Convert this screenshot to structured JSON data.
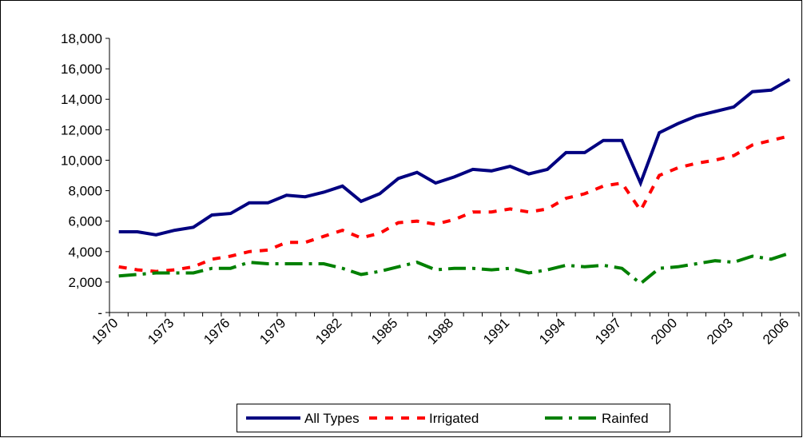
{
  "chart_data": {
    "type": "line",
    "categories": [
      "1970",
      null,
      null,
      "1973",
      null,
      null,
      "1976",
      null,
      null,
      "1979",
      null,
      null,
      "1982",
      null,
      null,
      "1985",
      null,
      null,
      "1988",
      null,
      null,
      "1991",
      null,
      null,
      "1994",
      null,
      null,
      "1997",
      null,
      null,
      "2000",
      null,
      null,
      "2003",
      null,
      null,
      "2006"
    ],
    "series": [
      {
        "name": "All Types",
        "color": "#000080",
        "dash": "solid",
        "values": [
          5300,
          5300,
          5100,
          5400,
          5600,
          6400,
          6500,
          7200,
          7200,
          7700,
          7600,
          7900,
          8300,
          7300,
          7800,
          8800,
          9200,
          8500,
          8900,
          9400,
          9300,
          9600,
          9100,
          9400,
          10500,
          10500,
          11300,
          11300,
          8500,
          11800,
          12400,
          12900,
          13200,
          13500,
          14500,
          14600,
          15300
        ]
      },
      {
        "name": "Irrigated",
        "color": "#ff0000",
        "dash": "dashed",
        "values": [
          3000,
          2800,
          2700,
          2800,
          3000,
          3500,
          3700,
          4000,
          4100,
          4600,
          4600,
          5000,
          5400,
          4900,
          5200,
          5900,
          6000,
          5800,
          6100,
          6600,
          6600,
          6800,
          6600,
          6800,
          7500,
          7800,
          8300,
          8500,
          6700,
          9000,
          9500,
          9800,
          10000,
          10300,
          11000,
          11300,
          11600
        ]
      },
      {
        "name": "Rainfed",
        "color": "#008000",
        "dash": "dashdot",
        "values": [
          2400,
          2500,
          2600,
          2600,
          2600,
          2900,
          2900,
          3300,
          3200,
          3200,
          3200,
          3200,
          2900,
          2500,
          2700,
          3000,
          3300,
          2800,
          2900,
          2900,
          2800,
          2900,
          2600,
          2800,
          3100,
          3000,
          3100,
          2900,
          1900,
          2900,
          3000,
          3200,
          3400,
          3300,
          3700,
          3500,
          3900
        ]
      }
    ],
    "ylim": [
      0,
      18000
    ],
    "yticks": [
      {
        "value": 0,
        "label": "-"
      },
      {
        "value": 2000,
        "label": "2,000"
      },
      {
        "value": 4000,
        "label": "4,000"
      },
      {
        "value": 6000,
        "label": "6,000"
      },
      {
        "value": 8000,
        "label": "8,000"
      },
      {
        "value": 10000,
        "label": "10,000"
      },
      {
        "value": 12000,
        "label": "12,000"
      },
      {
        "value": 14000,
        "label": "14,000"
      },
      {
        "value": 16000,
        "label": "16,000"
      },
      {
        "value": 18000,
        "label": "18,000"
      }
    ],
    "grid": false,
    "legend": "bottom"
  }
}
